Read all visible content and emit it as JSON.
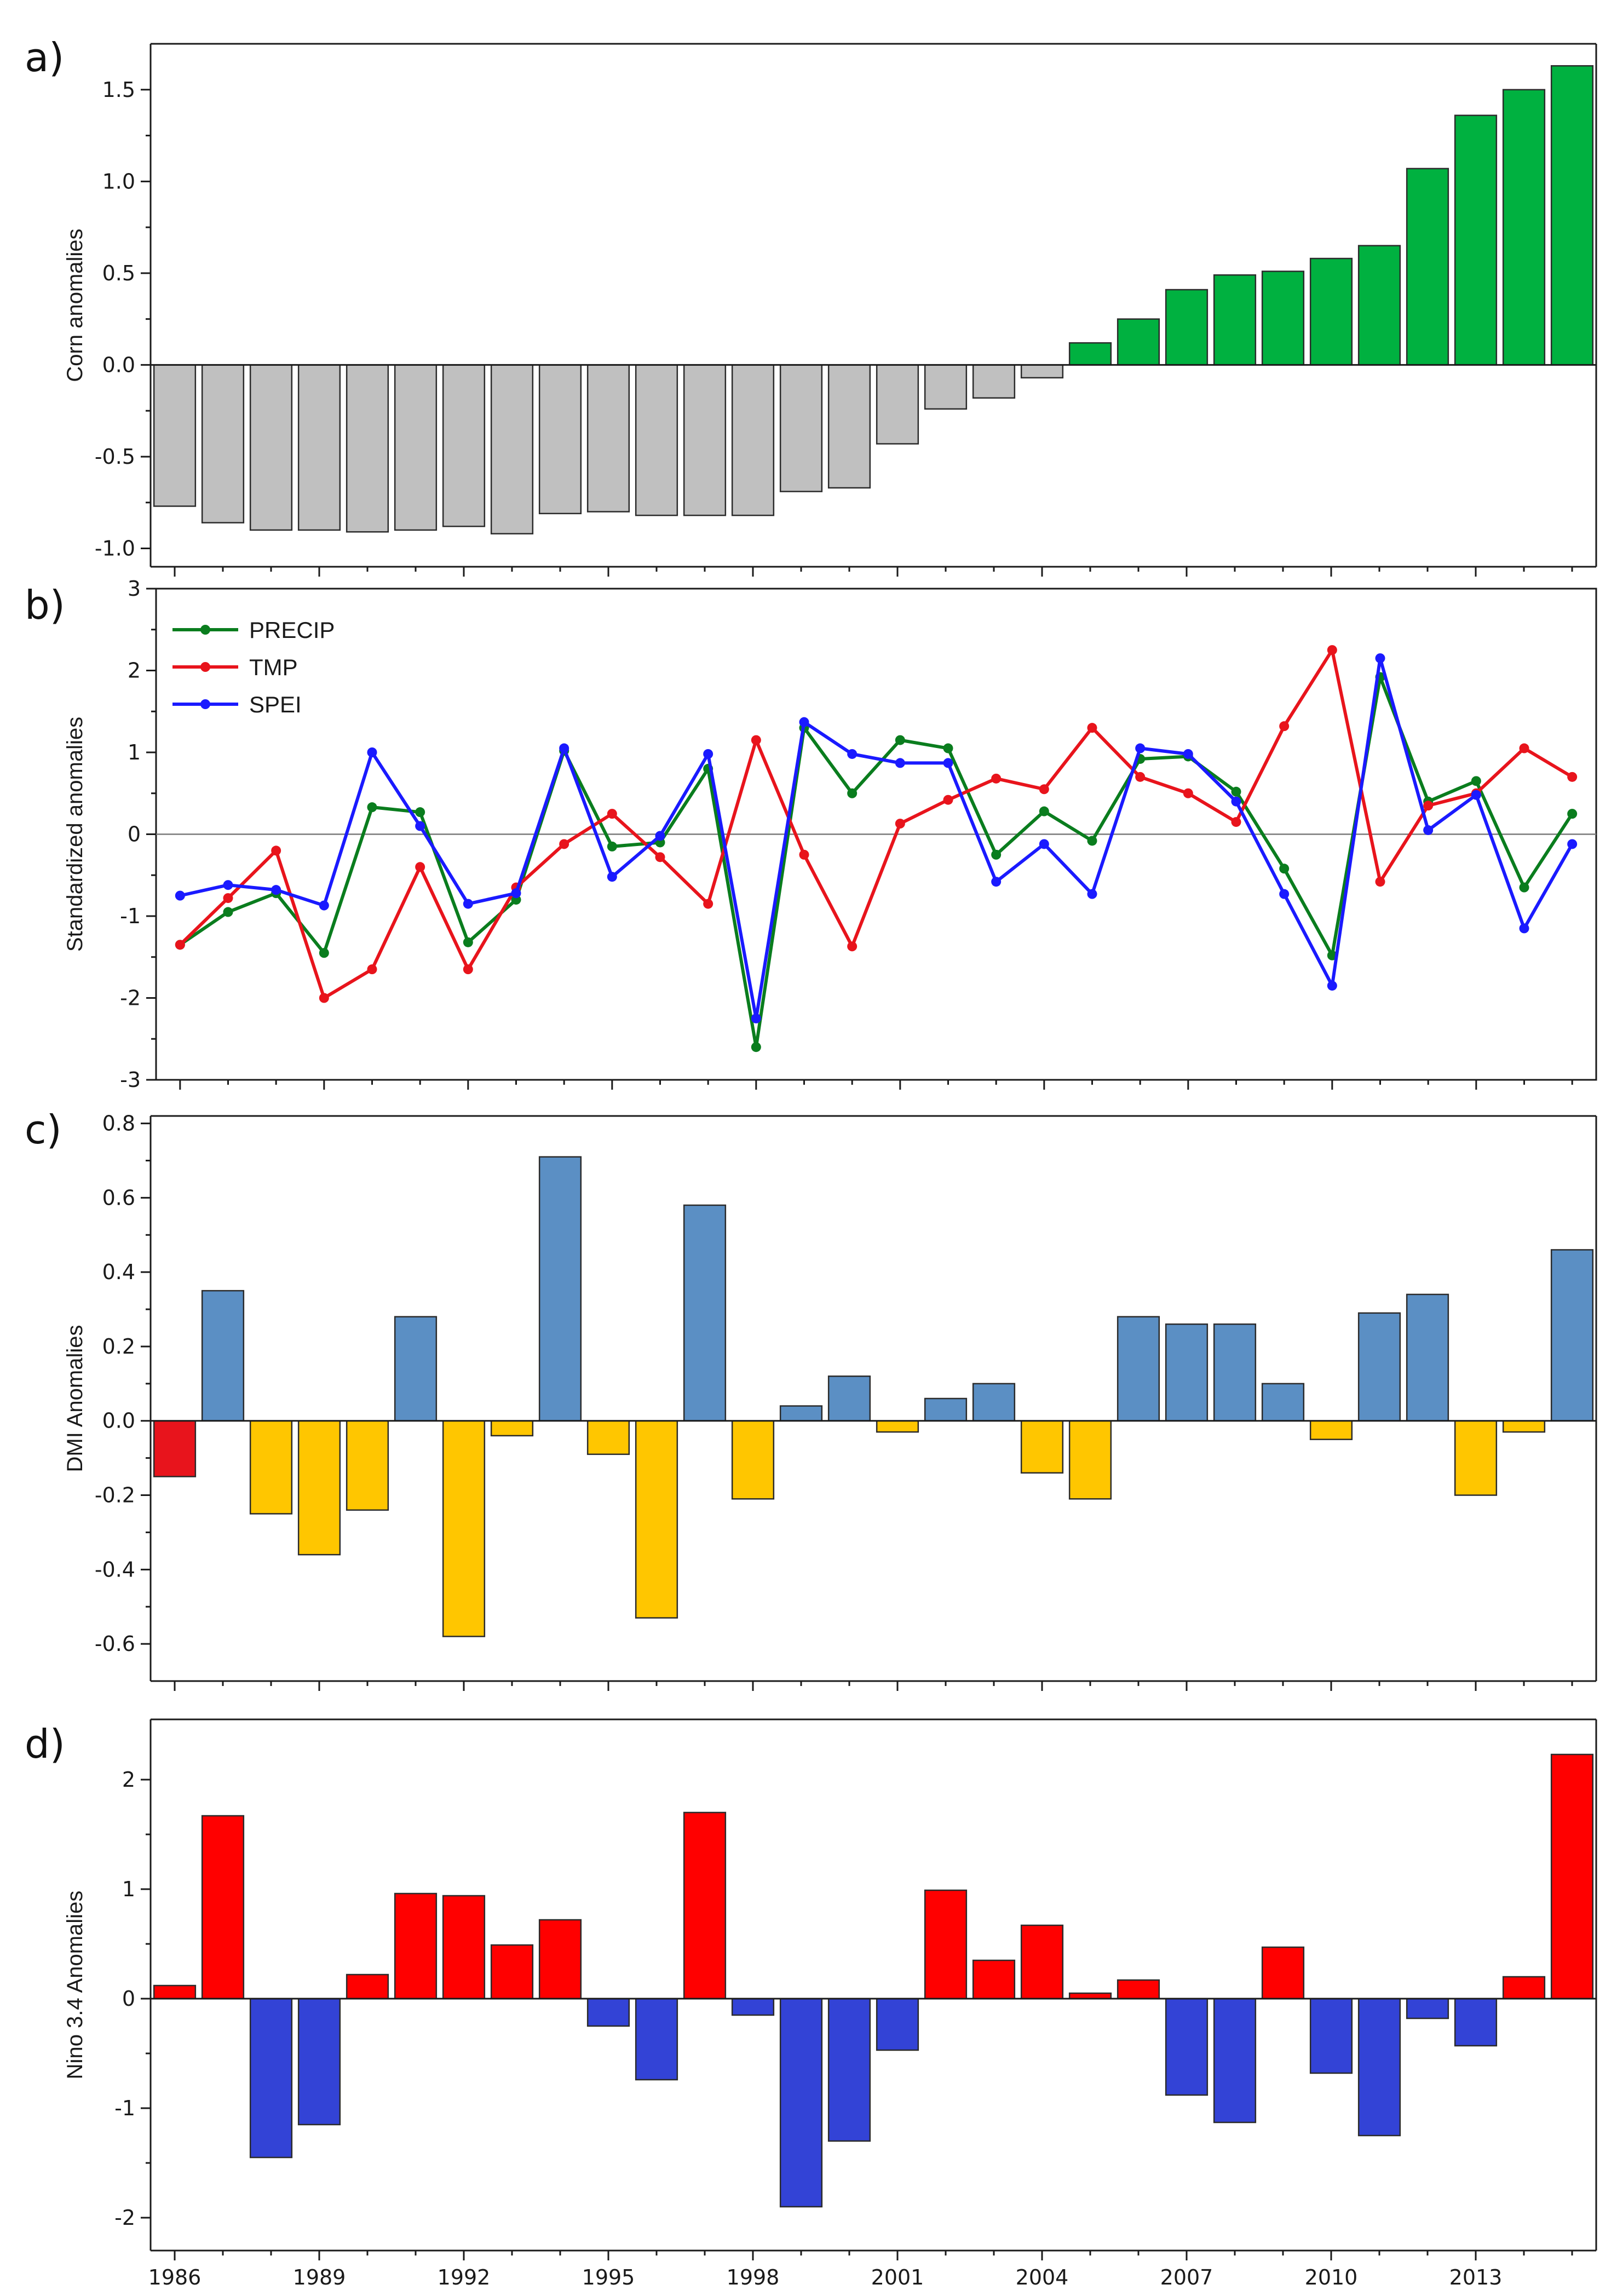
{
  "figure": {
    "x_tick_labels": [
      "1986",
      "1989",
      "1992",
      "1995",
      "1998",
      "2001",
      "2004",
      "2007",
      "2010",
      "2013"
    ]
  },
  "chart_data": [
    {
      "id": "a",
      "panel_label": "a)",
      "type": "bar",
      "ylabel": "Corn anomalies",
      "ylim": [
        -1.1,
        1.75
      ],
      "yticks": [
        -1.0,
        -0.5,
        0.0,
        0.5,
        1.0,
        1.5
      ],
      "ytick_labels": [
        "-1.0",
        "-0.5",
        "0.0",
        "0.5",
        "1.0",
        "1.5"
      ],
      "x_tick_labels_note": "bottom tick labels obscured by panel b",
      "colors": {
        "negative": "#c0c0c0",
        "positive": "#00b140"
      },
      "values": [
        -0.77,
        -0.86,
        -0.9,
        -0.9,
        -0.91,
        -0.9,
        -0.88,
        -0.92,
        -0.81,
        -0.8,
        -0.82,
        -0.82,
        -0.82,
        -0.69,
        -0.67,
        -0.43,
        -0.24,
        -0.18,
        -0.07,
        0.12,
        0.25,
        0.41,
        0.49,
        0.51,
        0.58,
        0.65,
        1.07,
        1.36,
        1.5,
        1.63
      ]
    },
    {
      "id": "b",
      "panel_label": "b)",
      "type": "line",
      "ylabel": "Standardized anomalies",
      "ylim": [
        -3,
        3
      ],
      "yticks": [
        -3,
        -2,
        -1,
        0,
        1,
        2,
        3
      ],
      "ytick_labels": [
        "-3",
        "-2",
        "-1",
        "0",
        "1",
        "2",
        "3"
      ],
      "legend_position": "top-left",
      "series": [
        {
          "name": "PRECIP",
          "color": "#0a7d1e",
          "values": [
            -1.35,
            -0.95,
            -0.72,
            -1.45,
            0.33,
            0.27,
            -1.32,
            -0.8,
            1.02,
            -0.15,
            -0.1,
            0.8,
            -2.6,
            1.3,
            0.5,
            1.15,
            1.05,
            -0.25,
            0.28,
            -0.08,
            0.92,
            0.95,
            0.52,
            -0.42,
            -1.48,
            1.92,
            0.4,
            0.65,
            -0.65,
            0.25
          ]
        },
        {
          "name": "TMP",
          "color": "#e8141c",
          "values": [
            -1.35,
            -0.78,
            -0.2,
            -2.0,
            -1.65,
            -0.4,
            -1.65,
            -0.65,
            -0.12,
            0.25,
            -0.28,
            -0.85,
            1.15,
            -0.25,
            -1.37,
            0.13,
            0.42,
            0.68,
            0.55,
            1.3,
            0.7,
            0.5,
            0.15,
            1.32,
            2.25,
            -0.58,
            0.35,
            0.5,
            1.05,
            0.7
          ]
        },
        {
          "name": "SPEI",
          "color": "#1a1aff",
          "values": [
            -0.75,
            -0.62,
            -0.68,
            -0.87,
            1.0,
            0.1,
            -0.85,
            -0.72,
            1.05,
            -0.52,
            -0.02,
            0.98,
            -2.25,
            1.37,
            0.98,
            0.87,
            0.87,
            -0.58,
            -0.12,
            -0.73,
            1.05,
            0.98,
            0.4,
            -0.73,
            -1.85,
            2.15,
            0.05,
            0.48,
            -1.15,
            -0.12
          ]
        }
      ]
    },
    {
      "id": "c",
      "panel_label": "c)",
      "type": "bar",
      "ylabel": "DMI Anomalies",
      "ylim": [
        -0.7,
        0.82
      ],
      "yticks": [
        -0.6,
        -0.4,
        -0.2,
        0.0,
        0.2,
        0.4,
        0.6,
        0.8
      ],
      "ytick_labels": [
        "-0.6",
        "-0.4",
        "-0.2",
        "0.0",
        "0.2",
        "0.4",
        "0.6",
        "0.8"
      ],
      "colors": {
        "negative": "#ffc600",
        "positive": "#5b8fc4",
        "first": "#e8141c"
      },
      "values": [
        -0.15,
        0.35,
        -0.25,
        -0.36,
        -0.24,
        0.28,
        -0.58,
        -0.04,
        0.71,
        -0.09,
        -0.53,
        0.58,
        -0.21,
        0.04,
        0.12,
        -0.03,
        0.06,
        0.1,
        -0.14,
        -0.21,
        0.28,
        0.26,
        0.26,
        0.1,
        -0.05,
        0.29,
        0.34,
        -0.2,
        -0.03,
        0.46
      ]
    },
    {
      "id": "d",
      "panel_label": "d)",
      "type": "bar",
      "ylabel": "Nino 3.4 Anomalies",
      "xlabel": "",
      "ylim": [
        -2.3,
        2.55
      ],
      "yticks": [
        -2,
        -1,
        0,
        1,
        2
      ],
      "ytick_labels": [
        "-2",
        "-1",
        "0",
        "1",
        "2"
      ],
      "colors": {
        "negative": "#3343d6",
        "positive": "#ff0000"
      },
      "values": [
        0.12,
        1.67,
        -1.45,
        -1.15,
        0.22,
        0.96,
        0.94,
        0.49,
        0.72,
        -0.25,
        -0.74,
        1.7,
        -0.15,
        -1.9,
        -1.3,
        -0.47,
        0.99,
        0.35,
        0.67,
        0.05,
        0.17,
        -0.88,
        -1.13,
        0.47,
        -0.68,
        -1.25,
        -0.18,
        -0.43,
        0.2,
        2.23
      ]
    }
  ]
}
